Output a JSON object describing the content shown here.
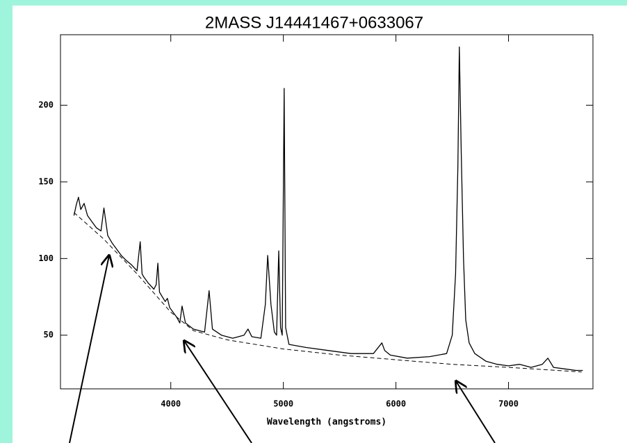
{
  "chart_data": {
    "type": "line",
    "title": "2MASS J14441467+0633067",
    "x_label": "Wavelength (angstroms)",
    "xlim": [
      3020,
      7750
    ],
    "ylim": [
      15,
      246
    ],
    "xticks": [
      4000,
      5000,
      6000,
      7000
    ],
    "yticks": [
      50,
      100,
      150,
      200
    ],
    "grid": false,
    "series": [
      {
        "color": "#000000",
        "dash": false,
        "x": [
          3140,
          3160,
          3180,
          3200,
          3230,
          3260,
          3300,
          3340,
          3380,
          3406,
          3440,
          3480,
          3520,
          3560,
          3600,
          3650,
          3700,
          3728,
          3745,
          3760,
          3800,
          3850,
          3870,
          3885,
          3900,
          3950,
          3970,
          3990,
          4050,
          4080,
          4100,
          4130,
          4200,
          4300,
          4340,
          4370,
          4450,
          4550,
          4650,
          4686,
          4720,
          4800,
          4840,
          4861,
          4890,
          4920,
          4940,
          4959,
          4975,
          4990,
          5007,
          5020,
          5050,
          5200,
          5400,
          5600,
          5800,
          5875,
          5900,
          5950,
          6100,
          6300,
          6450,
          6500,
          6530,
          6550,
          6563,
          6580,
          6600,
          6620,
          6650,
          6700,
          6800,
          6900,
          7000,
          7100,
          7200,
          7300,
          7350,
          7400,
          7500,
          7600,
          7660
        ],
        "values": [
          128,
          135,
          140,
          132,
          136,
          128,
          124,
          120,
          118,
          133,
          115,
          110,
          106,
          102,
          99,
          96,
          92,
          111,
          90,
          88,
          84,
          80,
          83,
          97,
          78,
          72,
          74,
          68,
          62,
          58,
          69,
          58,
          54,
          52,
          79,
          54,
          50,
          48,
          50,
          54,
          49,
          48,
          70,
          102,
          70,
          52,
          50,
          105,
          55,
          50,
          211,
          55,
          44,
          42,
          40,
          38,
          38,
          45,
          40,
          37,
          35,
          36,
          38,
          50,
          90,
          160,
          238,
          170,
          100,
          60,
          45,
          38,
          33,
          31,
          30,
          31,
          29,
          31,
          35,
          29,
          28,
          27,
          27
        ]
      },
      {
        "color": "#000000",
        "dash": true,
        "x": [
          3140,
          3400,
          3700,
          4000,
          4200,
          4500,
          5000,
          5500,
          6000,
          6500,
          7000,
          7650
        ],
        "values": [
          130,
          113,
          90,
          65,
          53,
          47,
          41,
          37,
          34,
          31,
          29,
          26
        ]
      }
    ]
  }
}
